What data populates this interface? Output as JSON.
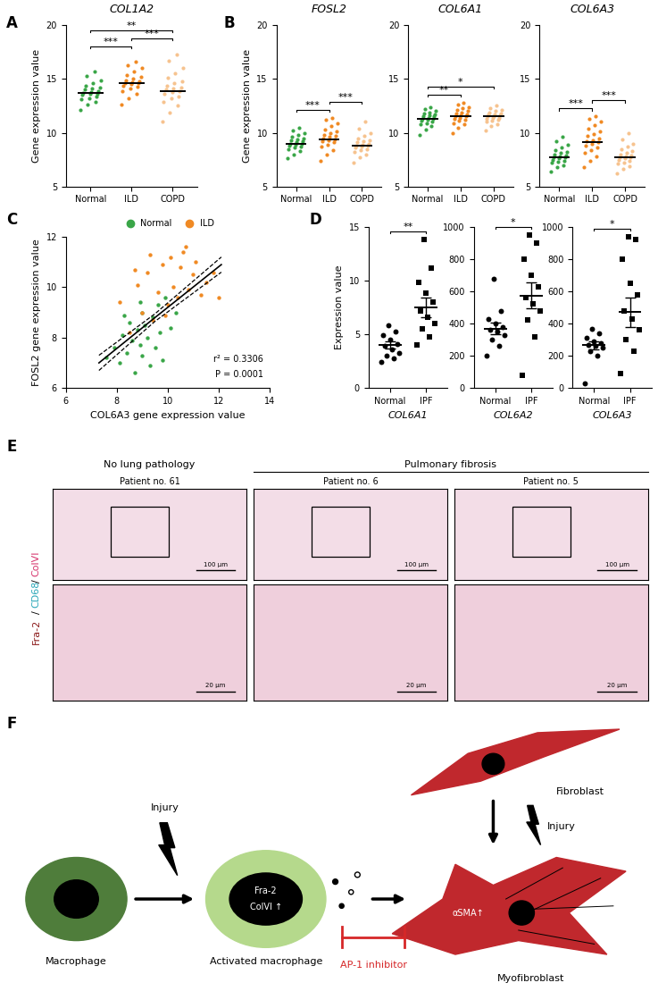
{
  "chart_data": [
    {
      "type": "strip",
      "panel": "A",
      "title": "COL1A2",
      "ylabel": "Gene expression value",
      "categories": [
        "Normal",
        "ILD",
        "COPD"
      ],
      "colors": [
        "#3aa648",
        "#f08a24",
        "#f6c38f"
      ],
      "values": [
        [
          12.1,
          12.6,
          12.9,
          13.1,
          13.2,
          13.4,
          13.5,
          13.6,
          13.6,
          13.7,
          13.8,
          13.9,
          14.0,
          14.1,
          14.2,
          14.4,
          14.6,
          14.9,
          15.3,
          15.7
        ],
        [
          12.6,
          13.2,
          13.6,
          13.9,
          14.1,
          14.3,
          14.4,
          14.5,
          14.6,
          14.6,
          14.7,
          14.8,
          14.9,
          15.0,
          15.2,
          15.4,
          15.7,
          16.0,
          16.3,
          16.6
        ],
        [
          11.0,
          11.9,
          12.5,
          12.9,
          13.2,
          13.4,
          13.6,
          13.8,
          13.9,
          14.0,
          14.1,
          14.2,
          14.4,
          14.6,
          14.8,
          15.1,
          15.5,
          16.0,
          16.7,
          17.3
        ]
      ],
      "means": [
        13.7,
        14.6,
        13.9
      ],
      "ylim": [
        5,
        20
      ],
      "yticks": [
        5,
        10,
        15,
        20
      ],
      "significance": [
        {
          "from": "Normal",
          "to": "ILD",
          "label": "***"
        },
        {
          "from": "ILD",
          "to": "COPD",
          "label": "***"
        },
        {
          "from": "Normal",
          "to": "COPD",
          "label": "**"
        }
      ]
    },
    {
      "type": "strip",
      "panel": "B",
      "title": "FOSL2",
      "ylabel": "Gene expression value",
      "categories": [
        "Normal",
        "ILD",
        "COPD"
      ],
      "colors": [
        "#3aa648",
        "#f08a24",
        "#f6c38f"
      ],
      "values": [
        [
          7.6,
          8.0,
          8.3,
          8.5,
          8.6,
          8.7,
          8.8,
          8.9,
          9.0,
          9.0,
          9.1,
          9.2,
          9.3,
          9.4,
          9.5,
          9.6,
          9.8,
          10.0,
          10.2,
          10.5
        ],
        [
          7.4,
          8.0,
          8.4,
          8.7,
          8.9,
          9.1,
          9.2,
          9.3,
          9.4,
          9.5,
          9.6,
          9.7,
          9.8,
          10.0,
          10.1,
          10.3,
          10.6,
          10.9,
          11.2,
          11.4
        ],
        [
          7.2,
          7.7,
          8.0,
          8.2,
          8.4,
          8.5,
          8.6,
          8.7,
          8.8,
          8.8,
          8.9,
          9.0,
          9.1,
          9.2,
          9.3,
          9.5,
          9.7,
          10.0,
          10.4,
          11.0
        ]
      ],
      "means": [
        9.0,
        9.4,
        8.8
      ],
      "ylim": [
        5,
        20
      ],
      "yticks": [
        5,
        10,
        15,
        20
      ],
      "significance": [
        {
          "from": "Normal",
          "to": "ILD",
          "label": "***"
        },
        {
          "from": "ILD",
          "to": "COPD",
          "label": "***"
        }
      ]
    },
    {
      "type": "strip",
      "title": "COL6A1",
      "categories": [
        "Normal",
        "ILD",
        "COPD"
      ],
      "colors": [
        "#3aa648",
        "#f08a24",
        "#f6c38f"
      ],
      "values": [
        [
          9.8,
          10.3,
          10.6,
          10.8,
          10.9,
          11.0,
          11.1,
          11.2,
          11.3,
          11.3,
          11.4,
          11.5,
          11.5,
          11.6,
          11.7,
          11.8,
          11.9,
          12.0,
          12.2,
          12.4
        ],
        [
          10.0,
          10.5,
          10.8,
          10.9,
          11.1,
          11.2,
          11.3,
          11.4,
          11.5,
          11.5,
          11.6,
          11.7,
          11.8,
          11.9,
          12.0,
          12.1,
          12.3,
          12.4,
          12.6,
          12.8
        ],
        [
          10.2,
          10.6,
          10.8,
          11.0,
          11.1,
          11.2,
          11.3,
          11.4,
          11.4,
          11.5,
          11.5,
          11.6,
          11.7,
          11.7,
          11.8,
          11.9,
          12.0,
          12.1,
          12.3,
          12.5
        ]
      ],
      "means": [
        11.3,
        11.5,
        11.5
      ],
      "ylim": [
        5,
        20
      ],
      "yticks": [
        5,
        10,
        15,
        20
      ],
      "significance": [
        {
          "from": "Normal",
          "to": "ILD",
          "label": "**"
        },
        {
          "from": "Normal",
          "to": "COPD",
          "label": "*"
        }
      ]
    },
    {
      "type": "strip",
      "title": "COL6A3",
      "categories": [
        "Normal",
        "ILD",
        "COPD"
      ],
      "colors": [
        "#3aa648",
        "#f08a24",
        "#f6c38f"
      ],
      "values": [
        [
          6.4,
          6.8,
          7.0,
          7.2,
          7.3,
          7.4,
          7.5,
          7.6,
          7.7,
          7.7,
          7.8,
          7.9,
          8.0,
          8.1,
          8.2,
          8.4,
          8.6,
          8.9,
          9.2,
          9.6
        ],
        [
          6.8,
          7.4,
          7.8,
          8.1,
          8.4,
          8.6,
          8.8,
          9.0,
          9.1,
          9.2,
          9.3,
          9.5,
          9.7,
          9.9,
          10.1,
          10.4,
          10.7,
          11.0,
          11.3,
          11.5
        ],
        [
          6.2,
          6.6,
          6.9,
          7.1,
          7.2,
          7.4,
          7.5,
          7.6,
          7.7,
          7.7,
          7.8,
          7.9,
          8.0,
          8.1,
          8.3,
          8.5,
          8.7,
          9.0,
          9.4,
          10.0
        ]
      ],
      "means": [
        7.7,
        9.1,
        7.7
      ],
      "ylim": [
        5,
        20
      ],
      "yticks": [
        5,
        10,
        15,
        20
      ],
      "significance": [
        {
          "from": "Normal",
          "to": "ILD",
          "label": "***"
        },
        {
          "from": "ILD",
          "to": "COPD",
          "label": "***"
        }
      ]
    },
    {
      "type": "scatter",
      "panel": "C",
      "xlabel": "COL6A3 gene expression value",
      "ylabel": "FOSL2 gene expression value",
      "series": [
        {
          "name": "Normal",
          "color": "#3aa648",
          "x": [
            7.6,
            7.9,
            8.1,
            8.2,
            8.4,
            8.5,
            8.6,
            8.7,
            8.8,
            8.9,
            9.0,
            9.0,
            9.1,
            9.2,
            9.3,
            9.4,
            9.5,
            9.6,
            9.7,
            9.8,
            9.9,
            10.1,
            10.3,
            8.3,
            8.9
          ],
          "y": [
            7.2,
            7.6,
            7.0,
            8.1,
            7.4,
            8.6,
            7.9,
            6.6,
            8.3,
            7.7,
            9.0,
            7.3,
            8.5,
            8.0,
            6.9,
            8.8,
            7.6,
            9.3,
            8.2,
            7.1,
            9.6,
            8.4,
            9.0,
            8.9,
            9.4
          ]
        },
        {
          "name": "ILD",
          "color": "#f08a24",
          "x": [
            8.1,
            8.5,
            8.8,
            9.0,
            9.2,
            9.4,
            9.6,
            9.8,
            10.0,
            10.1,
            10.2,
            10.4,
            10.5,
            10.6,
            10.8,
            11.0,
            11.1,
            11.3,
            11.5,
            11.8,
            12.0,
            9.3,
            9.9,
            10.7,
            8.7
          ],
          "y": [
            9.4,
            8.2,
            10.1,
            9.0,
            10.6,
            8.7,
            9.8,
            10.9,
            9.3,
            11.2,
            10.0,
            9.6,
            10.8,
            11.4,
            9.9,
            10.5,
            11.0,
            9.7,
            10.2,
            10.6,
            9.6,
            11.3,
            8.9,
            11.6,
            10.7
          ]
        }
      ],
      "fit": {
        "x": [
          7.3,
          9.5,
          12.1
        ],
        "y": [
          7.0,
          8.8,
          10.9
        ],
        "ci_upper": [
          7.3,
          8.95,
          11.2
        ],
        "ci_lower": [
          6.7,
          8.65,
          10.6
        ]
      },
      "annotations": [
        "r² = 0.3306",
        "P = 0.0001"
      ],
      "xlim": [
        6,
        14
      ],
      "xticks": [
        6,
        8,
        10,
        12,
        14
      ],
      "ylim": [
        6,
        12
      ],
      "yticks": [
        6,
        8,
        10,
        12
      ],
      "legend": "upper center"
    },
    {
      "type": "strip",
      "panel": "D",
      "xlabel": "COL6A1",
      "ylabel": "Expression value",
      "categories": [
        "Normal",
        "IPF"
      ],
      "color": "#000000",
      "marker": [
        "circle",
        "square"
      ],
      "values": [
        [
          2.4,
          2.8,
          3.0,
          3.3,
          3.6,
          3.9,
          4.1,
          4.5,
          4.9,
          5.3,
          5.8
        ],
        [
          4.0,
          4.8,
          5.5,
          6.0,
          6.6,
          7.2,
          8.0,
          8.8,
          9.8,
          11.2,
          13.8
        ]
      ],
      "means": [
        4.0,
        7.5
      ],
      "sem": [
        0.35,
        0.95
      ],
      "ylim": [
        0,
        15
      ],
      "yticks": [
        0,
        5,
        10,
        15
      ],
      "significance": [
        {
          "from": "Normal",
          "to": "IPF",
          "label": "**"
        }
      ]
    },
    {
      "type": "strip",
      "xlabel": "COL6A2",
      "categories": [
        "Normal",
        "IPF"
      ],
      "color": "#000000",
      "marker": [
        "circle",
        "square"
      ],
      "values": [
        [
          200,
          260,
          300,
          330,
          350,
          360,
          380,
          400,
          430,
          480,
          680
        ],
        [
          80,
          320,
          420,
          480,
          520,
          560,
          630,
          700,
          800,
          900,
          950
        ]
      ],
      "means": [
        370,
        575
      ],
      "sem": [
        38,
        80
      ],
      "ylim": [
        0,
        1000
      ],
      "yticks": [
        0,
        200,
        400,
        600,
        800,
        1000
      ],
      "significance": [
        {
          "from": "Normal",
          "to": "IPF",
          "label": "*"
        }
      ]
    },
    {
      "type": "strip",
      "xlabel": "COL6A3",
      "categories": [
        "Normal",
        "IPF"
      ],
      "color": "#000000",
      "marker": [
        "circle",
        "square"
      ],
      "values": [
        [
          30,
          200,
          230,
          250,
          260,
          270,
          280,
          290,
          310,
          340,
          370
        ],
        [
          90,
          230,
          300,
          360,
          430,
          480,
          580,
          650,
          800,
          920,
          940
        ]
      ],
      "means": [
        265,
        470
      ],
      "sem": [
        25,
        90
      ],
      "ylim": [
        0,
        1000
      ],
      "yticks": [
        0,
        200,
        400,
        600,
        800,
        1000
      ],
      "significance": [
        {
          "from": "Normal",
          "to": "IPF",
          "label": "*"
        }
      ]
    }
  ],
  "images": {
    "panel": "E",
    "stain": [
      {
        "text": "Fra-2",
        "color": "#8b1a1a"
      },
      {
        "text": "/",
        "color": "#000000"
      },
      {
        "text": "CD68",
        "color": "#2aa7b8"
      },
      {
        "text": "/",
        "color": "#000000"
      },
      {
        "text": "ColVI",
        "color": "#d6336c"
      }
    ],
    "groups": [
      {
        "label": "No lung pathology",
        "patients": [
          "Patient no. 61"
        ]
      },
      {
        "label": "Pulmonary fibrosis",
        "patients": [
          "Patient no. 6",
          "Patient no. 5"
        ]
      }
    ],
    "scale_bars": {
      "overview": "100 μm",
      "detail": "20 μm"
    }
  },
  "diagram": {
    "panel": "F",
    "macrophage": "Macrophage",
    "activated": "Activated macrophage",
    "fibroblast": "Fibroblast",
    "myofibroblast": "Myofibroblast",
    "injury": "Injury",
    "nucleus_texts": [
      "Fra-2",
      "ColVI ↑"
    ],
    "marker_text": "αSMA↑",
    "inhibitor": "AP-1 inhibitor"
  }
}
